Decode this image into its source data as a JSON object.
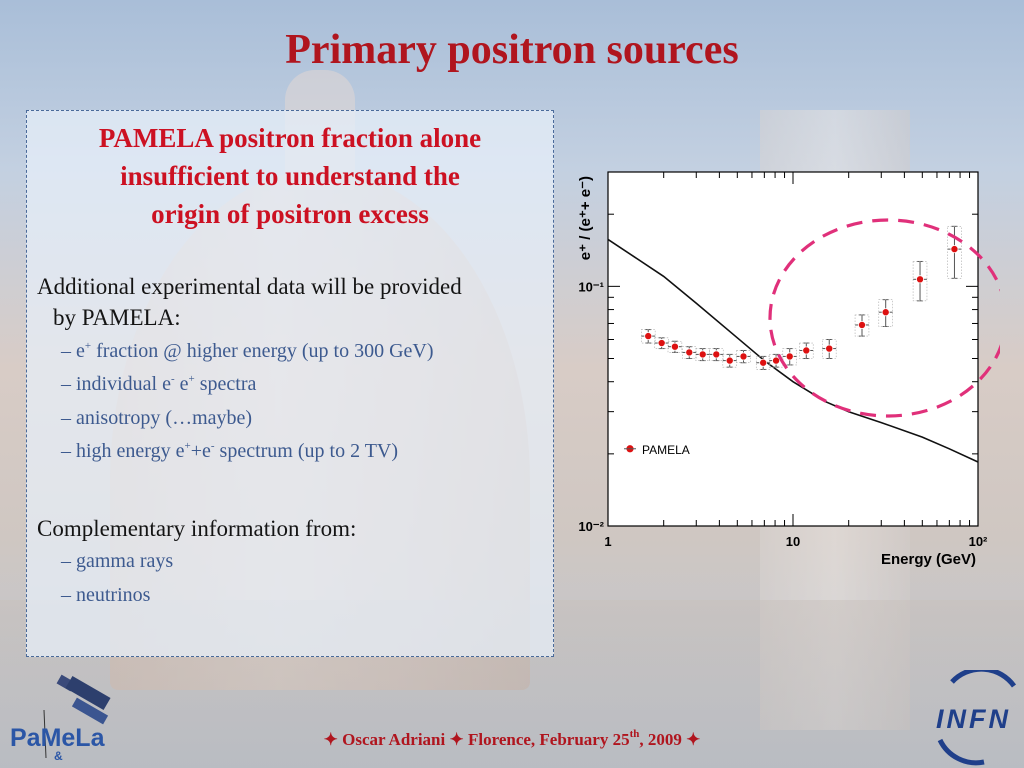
{
  "slide": {
    "title": "Primary positron sources",
    "headline_lines": [
      "PAMELA positron fraction alone",
      "insufficient to understand the",
      "origin of  positron excess"
    ],
    "paragraph1_line1": "Additional experimental data will be provided",
    "paragraph1_line2": "by PAMELA:",
    "bullets1": [
      {
        "prefix": "– e",
        "sup": "+",
        "rest": " fraction @ higher energy (up to 300 GeV)"
      },
      {
        "prefix": "– individual e",
        "sup": "-",
        "mid": " e",
        "sup2": "+",
        "rest": " spectra"
      },
      {
        "prefix": "– anisotropy (…maybe)"
      },
      {
        "prefix": "– high energy e",
        "sup": "+",
        "mid": "+e",
        "sup2": "-",
        "rest": " spectrum (up to 2 TV)"
      }
    ],
    "paragraph2": "Complementary information from:",
    "bullets2": [
      "– gamma rays",
      "– neutrinos"
    ],
    "footer": {
      "star": "✦",
      "author": "Oscar Adriani",
      "place_date_pre": "Florence, February 25",
      "date_sup": "th",
      "date_post": ", 2009"
    },
    "logo_left_text": "PaMeLa",
    "logo_right_text": "INFN",
    "colors": {
      "title": "#b0151e",
      "headline": "#cc1122",
      "bullet": "#3d5a8f",
      "ellipse": "#e0307a",
      "markers": "#dd1111"
    }
  },
  "chart_data": {
    "type": "scatter",
    "title": "",
    "xlabel": "Energy (GeV)",
    "ylabel": "e⁺ / (e⁺+ e⁻)",
    "xscale": "log",
    "yscale": "log",
    "xlim": [
      1,
      100
    ],
    "ylim": [
      0.01,
      0.3
    ],
    "x_ticks": [
      "1",
      "10",
      "10²"
    ],
    "y_ticks": [
      "10⁻²",
      "10⁻¹"
    ],
    "legend": {
      "label": "PAMELA",
      "position": "lower-left"
    },
    "series": [
      {
        "name": "PAMELA",
        "x": [
          1.65,
          1.95,
          2.3,
          2.75,
          3.25,
          3.85,
          4.55,
          5.4,
          6.9,
          8.1,
          9.6,
          11.8,
          15.7,
          23.6,
          31.7,
          48.6,
          74.6
        ],
        "y": [
          0.062,
          0.058,
          0.056,
          0.053,
          0.052,
          0.052,
          0.049,
          0.051,
          0.048,
          0.049,
          0.051,
          0.054,
          0.055,
          0.069,
          0.078,
          0.107,
          0.143
        ],
        "y_err": [
          0.004,
          0.003,
          0.003,
          0.003,
          0.003,
          0.003,
          0.003,
          0.003,
          0.003,
          0.003,
          0.004,
          0.004,
          0.005,
          0.007,
          0.01,
          0.02,
          0.035
        ]
      },
      {
        "name": "",
        "style": "line",
        "x": [
          1,
          2,
          3,
          5,
          7,
          10,
          15,
          20,
          30,
          50,
          70,
          100
        ],
        "y": [
          0.157,
          0.11,
          0.085,
          0.061,
          0.049,
          0.04,
          0.033,
          0.03,
          0.027,
          0.0235,
          0.021,
          0.0185
        ]
      }
    ]
  }
}
